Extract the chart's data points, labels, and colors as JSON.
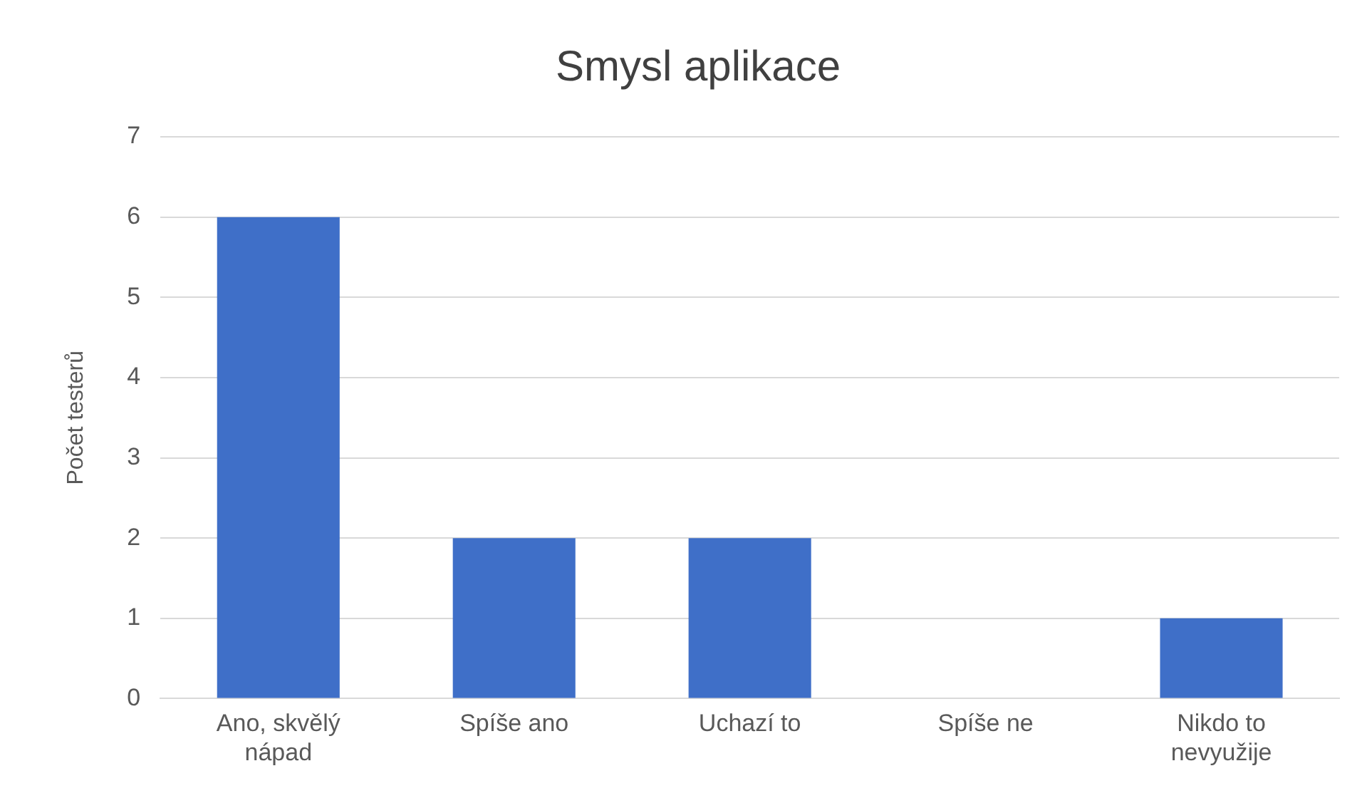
{
  "chart_data": {
    "type": "bar",
    "title": "Smysl aplikace",
    "ylabel": "Počet testerů",
    "categories": [
      "Ano, skvělý nápad",
      "Spíše ano",
      "Uchazí to",
      "Spíše ne",
      "Nikdo to nevyužije"
    ],
    "values": [
      6,
      2,
      2,
      0,
      1
    ],
    "color": "#3f6fc8",
    "ylim": [
      0,
      7
    ],
    "yticks": [
      0,
      1,
      2,
      3,
      4,
      5,
      6,
      7
    ],
    "grid": "y"
  }
}
